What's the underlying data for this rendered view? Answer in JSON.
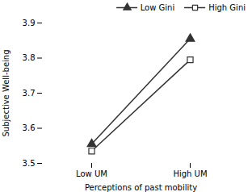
{
  "chart_data": {
    "type": "line",
    "xlabel": "Perceptions of past mobility",
    "ylabel": "Subjective Well-being",
    "categories": [
      "Low UM",
      "High UM"
    ],
    "series": [
      {
        "name": "Low Gini",
        "color": "#333333",
        "marker": "triangle",
        "line_style": "solid",
        "values": [
          3.555,
          3.855
        ]
      },
      {
        "name": "High Gini",
        "color": "#333333",
        "marker": "open-square",
        "line_style": "solid",
        "values": [
          3.535,
          3.795
        ]
      }
    ],
    "ylim": [
      3.5,
      3.9
    ],
    "yticks": [
      3.5,
      3.6,
      3.7,
      3.8,
      3.9
    ],
    "grid": false,
    "legend": "upper right"
  }
}
